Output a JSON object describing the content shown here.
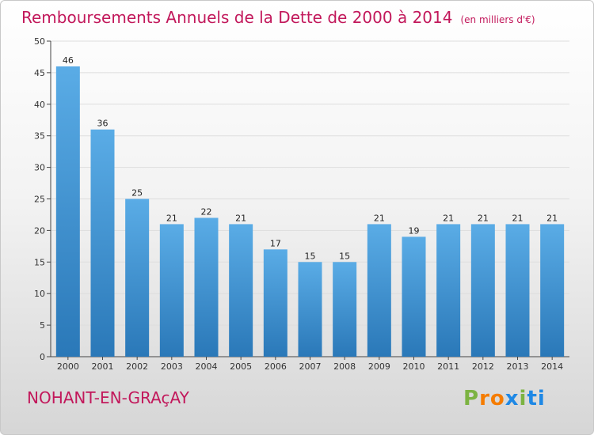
{
  "header": {
    "title": "Remboursements Annuels de la Dette de 2000 à 2014",
    "subtitle": "(en milliers d'€)"
  },
  "footer": {
    "commune": "NOHANT-EN-GRAçAY",
    "logo": "Proxiti",
    "logo_letters": [
      "P",
      "r",
      "o",
      "x",
      "i",
      "t",
      "i"
    ]
  },
  "colors": {
    "title": "#c2185b",
    "bar_top": "#5aace6",
    "bar_bottom": "#2a78b8",
    "grid": "#dddddd",
    "axis": "#444444"
  },
  "chart_data": {
    "type": "bar",
    "title": "Remboursements Annuels de la Dette de 2000 à 2014",
    "subtitle": "(en milliers d'€)",
    "xlabel": "",
    "ylabel": "",
    "categories": [
      "2000",
      "2001",
      "2002",
      "2003",
      "2004",
      "2005",
      "2006",
      "2007",
      "2008",
      "2009",
      "2010",
      "2011",
      "2012",
      "2013",
      "2014"
    ],
    "values": [
      46,
      36,
      25,
      21,
      22,
      21,
      17,
      15,
      15,
      21,
      19,
      21,
      21,
      21,
      21
    ],
    "ylim": [
      0,
      50
    ],
    "yticks": [
      0,
      5,
      10,
      15,
      20,
      25,
      30,
      35,
      40,
      45,
      50
    ],
    "grid": true,
    "legend": "none"
  }
}
